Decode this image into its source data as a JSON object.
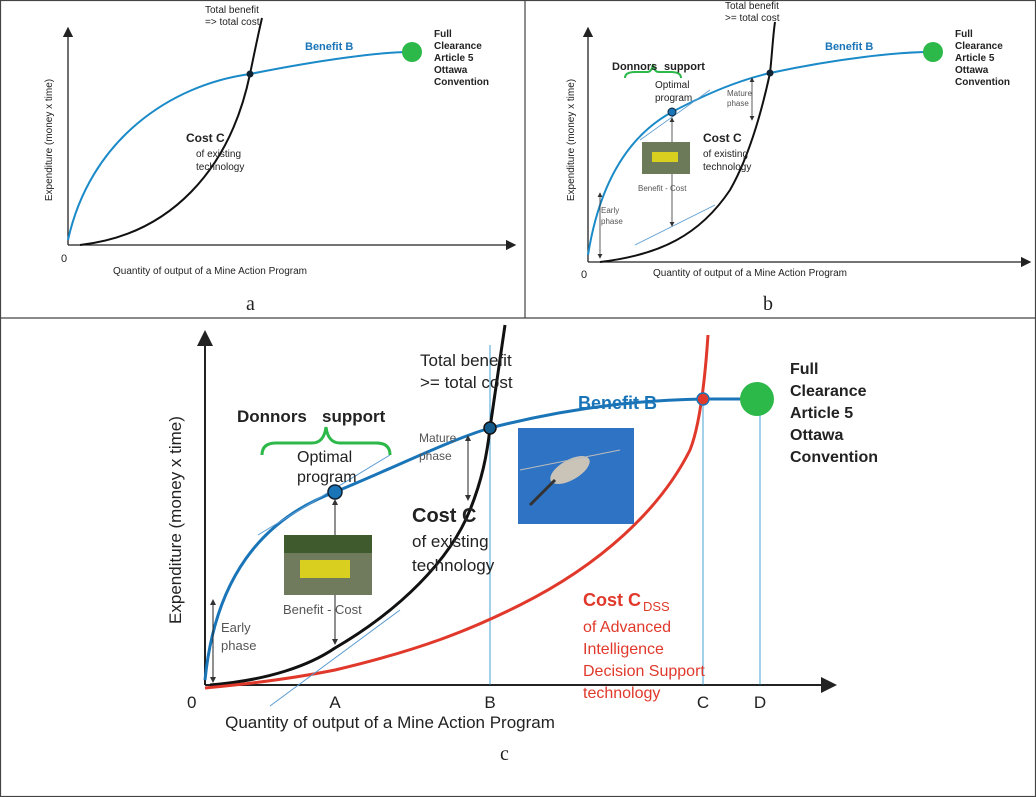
{
  "panels": [
    {
      "label": "a",
      "y_axis": "Expenditure (money x time)",
      "x_axis": "Quantity of output  of a Mine Action Program",
      "origin": "0",
      "total_benefit": [
        "Total benefit",
        "=> total  cost"
      ],
      "benefit": "Benefit B",
      "full_clearance": [
        "Full",
        "Clearance",
        "Article 5",
        "Ottawa",
        "Convention"
      ],
      "cost": "Cost C",
      "cost_desc": [
        "of existing",
        "technology"
      ]
    },
    {
      "label": "b",
      "y_axis": "Expenditure (money x time)",
      "x_axis": "Quantity of output  of a Mine Action Program",
      "origin": "0",
      "total_benefit": [
        "Total benefit",
        ">= total  cost"
      ],
      "benefit": "Benefit B",
      "full_clearance": [
        "Full",
        "Clearance",
        "Article 5",
        "Ottawa",
        "Convention"
      ],
      "cost": "Cost C",
      "cost_desc": [
        "of existing",
        "technology"
      ],
      "donors": "Donnors",
      "support": "support",
      "optimal": [
        "Optimal",
        "program"
      ],
      "mature": [
        "Mature",
        "phase"
      ],
      "benefit_cost": "Benefit - Cost",
      "early": [
        "Early",
        "phase"
      ]
    },
    {
      "label": "c",
      "y_axis": "Expenditure (money x time)",
      "x_axis": "Quantity of output  of a Mine Action Program",
      "origin": "0",
      "total_benefit": [
        "Total benefit",
        ">= total  cost"
      ],
      "benefit": "Benefit B",
      "full_clearance": [
        "Full",
        "Clearance",
        "Article 5",
        "Ottawa",
        "Convention"
      ],
      "cost": "Cost C",
      "cost_desc": [
        "of existing",
        "technology"
      ],
      "donors": "Donnors",
      "support": "support",
      "optimal": [
        "Optimal",
        "program"
      ],
      "mature": [
        "Mature",
        "phase"
      ],
      "benefit_cost": "Benefit - Cost",
      "early": [
        "Early",
        "phase"
      ],
      "points": [
        "A",
        "B",
        "C",
        "D"
      ],
      "cost_dss": "Cost C",
      "cost_dss_sub": "DSS",
      "cost_dss_desc": [
        "of Advanced",
        "Intelligence",
        "Decision Support",
        "technology"
      ]
    }
  ]
}
